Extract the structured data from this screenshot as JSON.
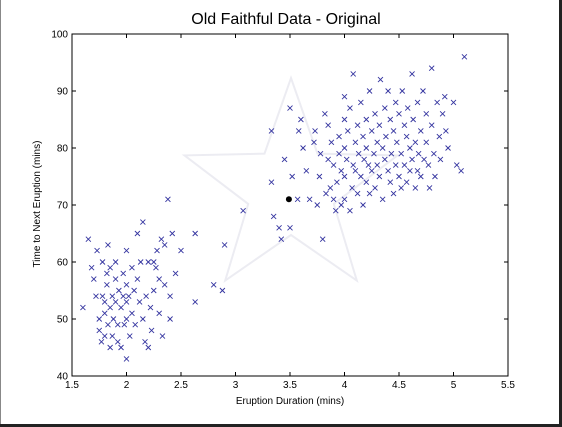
{
  "chart_data": {
    "type": "scatter",
    "title": "Old Faithful Data - Original",
    "xlabel": "Eruption Duration (mins)",
    "ylabel": "Time to Next Eruption (mins)",
    "xlim": [
      1.5,
      5.5
    ],
    "ylim": [
      40,
      100
    ],
    "xticks": [
      "1.5",
      "2",
      "2.5",
      "3",
      "3.5",
      "4",
      "4.5",
      "5",
      "5.5"
    ],
    "yticks": [
      "40",
      "50",
      "60",
      "70",
      "80",
      "90",
      "100"
    ],
    "grid": false,
    "marker": "x",
    "marker_color": "#3535a0",
    "highlight_color": "#000000",
    "watermark": "star",
    "highlight_point": {
      "x": 3.49,
      "y": 71
    },
    "series": [
      {
        "points": [
          [
            1.6,
            52
          ],
          [
            1.65,
            64
          ],
          [
            1.68,
            59
          ],
          [
            1.7,
            57
          ],
          [
            1.72,
            54
          ],
          [
            1.73,
            62
          ],
          [
            1.75,
            48
          ],
          [
            1.75,
            50
          ],
          [
            1.77,
            46
          ],
          [
            1.78,
            54
          ],
          [
            1.78,
            60
          ],
          [
            1.8,
            53
          ],
          [
            1.8,
            47
          ],
          [
            1.8,
            51
          ],
          [
            1.82,
            56
          ],
          [
            1.82,
            58
          ],
          [
            1.83,
            49
          ],
          [
            1.83,
            63
          ],
          [
            1.85,
            45
          ],
          [
            1.85,
            52
          ],
          [
            1.85,
            59
          ],
          [
            1.87,
            54
          ],
          [
            1.87,
            47
          ],
          [
            1.88,
            50
          ],
          [
            1.9,
            53
          ],
          [
            1.9,
            57
          ],
          [
            1.9,
            60
          ],
          [
            1.92,
            46
          ],
          [
            1.92,
            49
          ],
          [
            1.93,
            55
          ],
          [
            1.95,
            52
          ],
          [
            1.95,
            45
          ],
          [
            1.97,
            58
          ],
          [
            1.97,
            54
          ],
          [
            1.98,
            49
          ],
          [
            2.0,
            56
          ],
          [
            2.0,
            50
          ],
          [
            2.0,
            53
          ],
          [
            2.0,
            62
          ],
          [
            2.0,
            43
          ],
          [
            2.02,
            54
          ],
          [
            2.03,
            47
          ],
          [
            2.05,
            59
          ],
          [
            2.05,
            51
          ],
          [
            2.07,
            55
          ],
          [
            2.08,
            49
          ],
          [
            2.1,
            65
          ],
          [
            2.1,
            57
          ],
          [
            2.12,
            53
          ],
          [
            2.13,
            60
          ],
          [
            2.15,
            67
          ],
          [
            2.15,
            50
          ],
          [
            2.17,
            46
          ],
          [
            2.18,
            54
          ],
          [
            2.2,
            60
          ],
          [
            2.2,
            45
          ],
          [
            2.22,
            52
          ],
          [
            2.23,
            48
          ],
          [
            2.25,
            55
          ],
          [
            2.25,
            60
          ],
          [
            2.27,
            59
          ],
          [
            2.28,
            62
          ],
          [
            2.3,
            51
          ],
          [
            2.3,
            57
          ],
          [
            2.32,
            64
          ],
          [
            2.33,
            47
          ],
          [
            2.35,
            56
          ],
          [
            2.35,
            63
          ],
          [
            2.38,
            71
          ],
          [
            2.4,
            54
          ],
          [
            2.4,
            50
          ],
          [
            2.42,
            65
          ],
          [
            2.45,
            58
          ],
          [
            2.5,
            62
          ],
          [
            2.63,
            65
          ],
          [
            2.63,
            53
          ],
          [
            2.8,
            56
          ],
          [
            2.88,
            55
          ],
          [
            2.9,
            63
          ],
          [
            3.07,
            69
          ],
          [
            3.33,
            83
          ],
          [
            3.33,
            74
          ],
          [
            3.35,
            68
          ],
          [
            3.4,
            66
          ],
          [
            3.42,
            64
          ],
          [
            3.45,
            78
          ],
          [
            3.5,
            87
          ],
          [
            3.5,
            66
          ],
          [
            3.52,
            75
          ],
          [
            3.57,
            71
          ],
          [
            3.58,
            83
          ],
          [
            3.6,
            85
          ],
          [
            3.62,
            80
          ],
          [
            3.65,
            76
          ],
          [
            3.68,
            71
          ],
          [
            3.72,
            81
          ],
          [
            3.73,
            83
          ],
          [
            3.75,
            70
          ],
          [
            3.77,
            75
          ],
          [
            3.78,
            79
          ],
          [
            3.8,
            64
          ],
          [
            3.82,
            86
          ],
          [
            3.83,
            72
          ],
          [
            3.85,
            84
          ],
          [
            3.85,
            78
          ],
          [
            3.87,
            73
          ],
          [
            3.88,
            81
          ],
          [
            3.9,
            77
          ],
          [
            3.9,
            71
          ],
          [
            3.92,
            69
          ],
          [
            3.93,
            74
          ],
          [
            3.95,
            79
          ],
          [
            3.95,
            82
          ],
          [
            3.97,
            76
          ],
          [
            3.97,
            70
          ],
          [
            4.0,
            89
          ],
          [
            4.0,
            85
          ],
          [
            4.0,
            80
          ],
          [
            4.0,
            75
          ],
          [
            4.0,
            71
          ],
          [
            4.02,
            78
          ],
          [
            4.03,
            83
          ],
          [
            4.05,
            69
          ],
          [
            4.05,
            87
          ],
          [
            4.07,
            73
          ],
          [
            4.08,
            77
          ],
          [
            4.08,
            93
          ],
          [
            4.1,
            81
          ],
          [
            4.1,
            76
          ],
          [
            4.12,
            84
          ],
          [
            4.12,
            72
          ],
          [
            4.13,
            79
          ],
          [
            4.15,
            75
          ],
          [
            4.15,
            88
          ],
          [
            4.17,
            82
          ],
          [
            4.17,
            70
          ],
          [
            4.18,
            78
          ],
          [
            4.2,
            74
          ],
          [
            4.2,
            85
          ],
          [
            4.2,
            80
          ],
          [
            4.22,
            77
          ],
          [
            4.23,
            90
          ],
          [
            4.23,
            72
          ],
          [
            4.25,
            83
          ],
          [
            4.25,
            76
          ],
          [
            4.27,
            79
          ],
          [
            4.28,
            86
          ],
          [
            4.28,
            73
          ],
          [
            4.3,
            81
          ],
          [
            4.3,
            77
          ],
          [
            4.32,
            75
          ],
          [
            4.32,
            84
          ],
          [
            4.33,
            92
          ],
          [
            4.35,
            80
          ],
          [
            4.35,
            71
          ],
          [
            4.37,
            87
          ],
          [
            4.37,
            78
          ],
          [
            4.38,
            82
          ],
          [
            4.4,
            76
          ],
          [
            4.4,
            90
          ],
          [
            4.42,
            74
          ],
          [
            4.42,
            85
          ],
          [
            4.43,
            79
          ],
          [
            4.45,
            83
          ],
          [
            4.45,
            72
          ],
          [
            4.47,
            88
          ],
          [
            4.47,
            77
          ],
          [
            4.48,
            81
          ],
          [
            4.5,
            75
          ],
          [
            4.5,
            86
          ],
          [
            4.52,
            79
          ],
          [
            4.52,
            73
          ],
          [
            4.53,
            90
          ],
          [
            4.55,
            84
          ],
          [
            4.55,
            77
          ],
          [
            4.57,
            82
          ],
          [
            4.57,
            74
          ],
          [
            4.58,
            87
          ],
          [
            4.6,
            80
          ],
          [
            4.6,
            76
          ],
          [
            4.62,
            93
          ],
          [
            4.62,
            78
          ],
          [
            4.63,
            85
          ],
          [
            4.65,
            73
          ],
          [
            4.65,
            81
          ],
          [
            4.67,
            88
          ],
          [
            4.67,
            76
          ],
          [
            4.68,
            79
          ],
          [
            4.7,
            83
          ],
          [
            4.7,
            75
          ],
          [
            4.72,
            90
          ],
          [
            4.73,
            78
          ],
          [
            4.75,
            81
          ],
          [
            4.75,
            86
          ],
          [
            4.77,
            77
          ],
          [
            4.78,
            73
          ],
          [
            4.8,
            94
          ],
          [
            4.8,
            84
          ],
          [
            4.82,
            79
          ],
          [
            4.83,
            75
          ],
          [
            4.85,
            88
          ],
          [
            4.87,
            82
          ],
          [
            4.88,
            78
          ],
          [
            4.9,
            86
          ],
          [
            4.92,
            89
          ],
          [
            4.93,
            83
          ],
          [
            4.95,
            80
          ],
          [
            5.0,
            88
          ],
          [
            5.03,
            77
          ],
          [
            5.07,
            76
          ],
          [
            5.1,
            96
          ]
        ]
      }
    ]
  }
}
